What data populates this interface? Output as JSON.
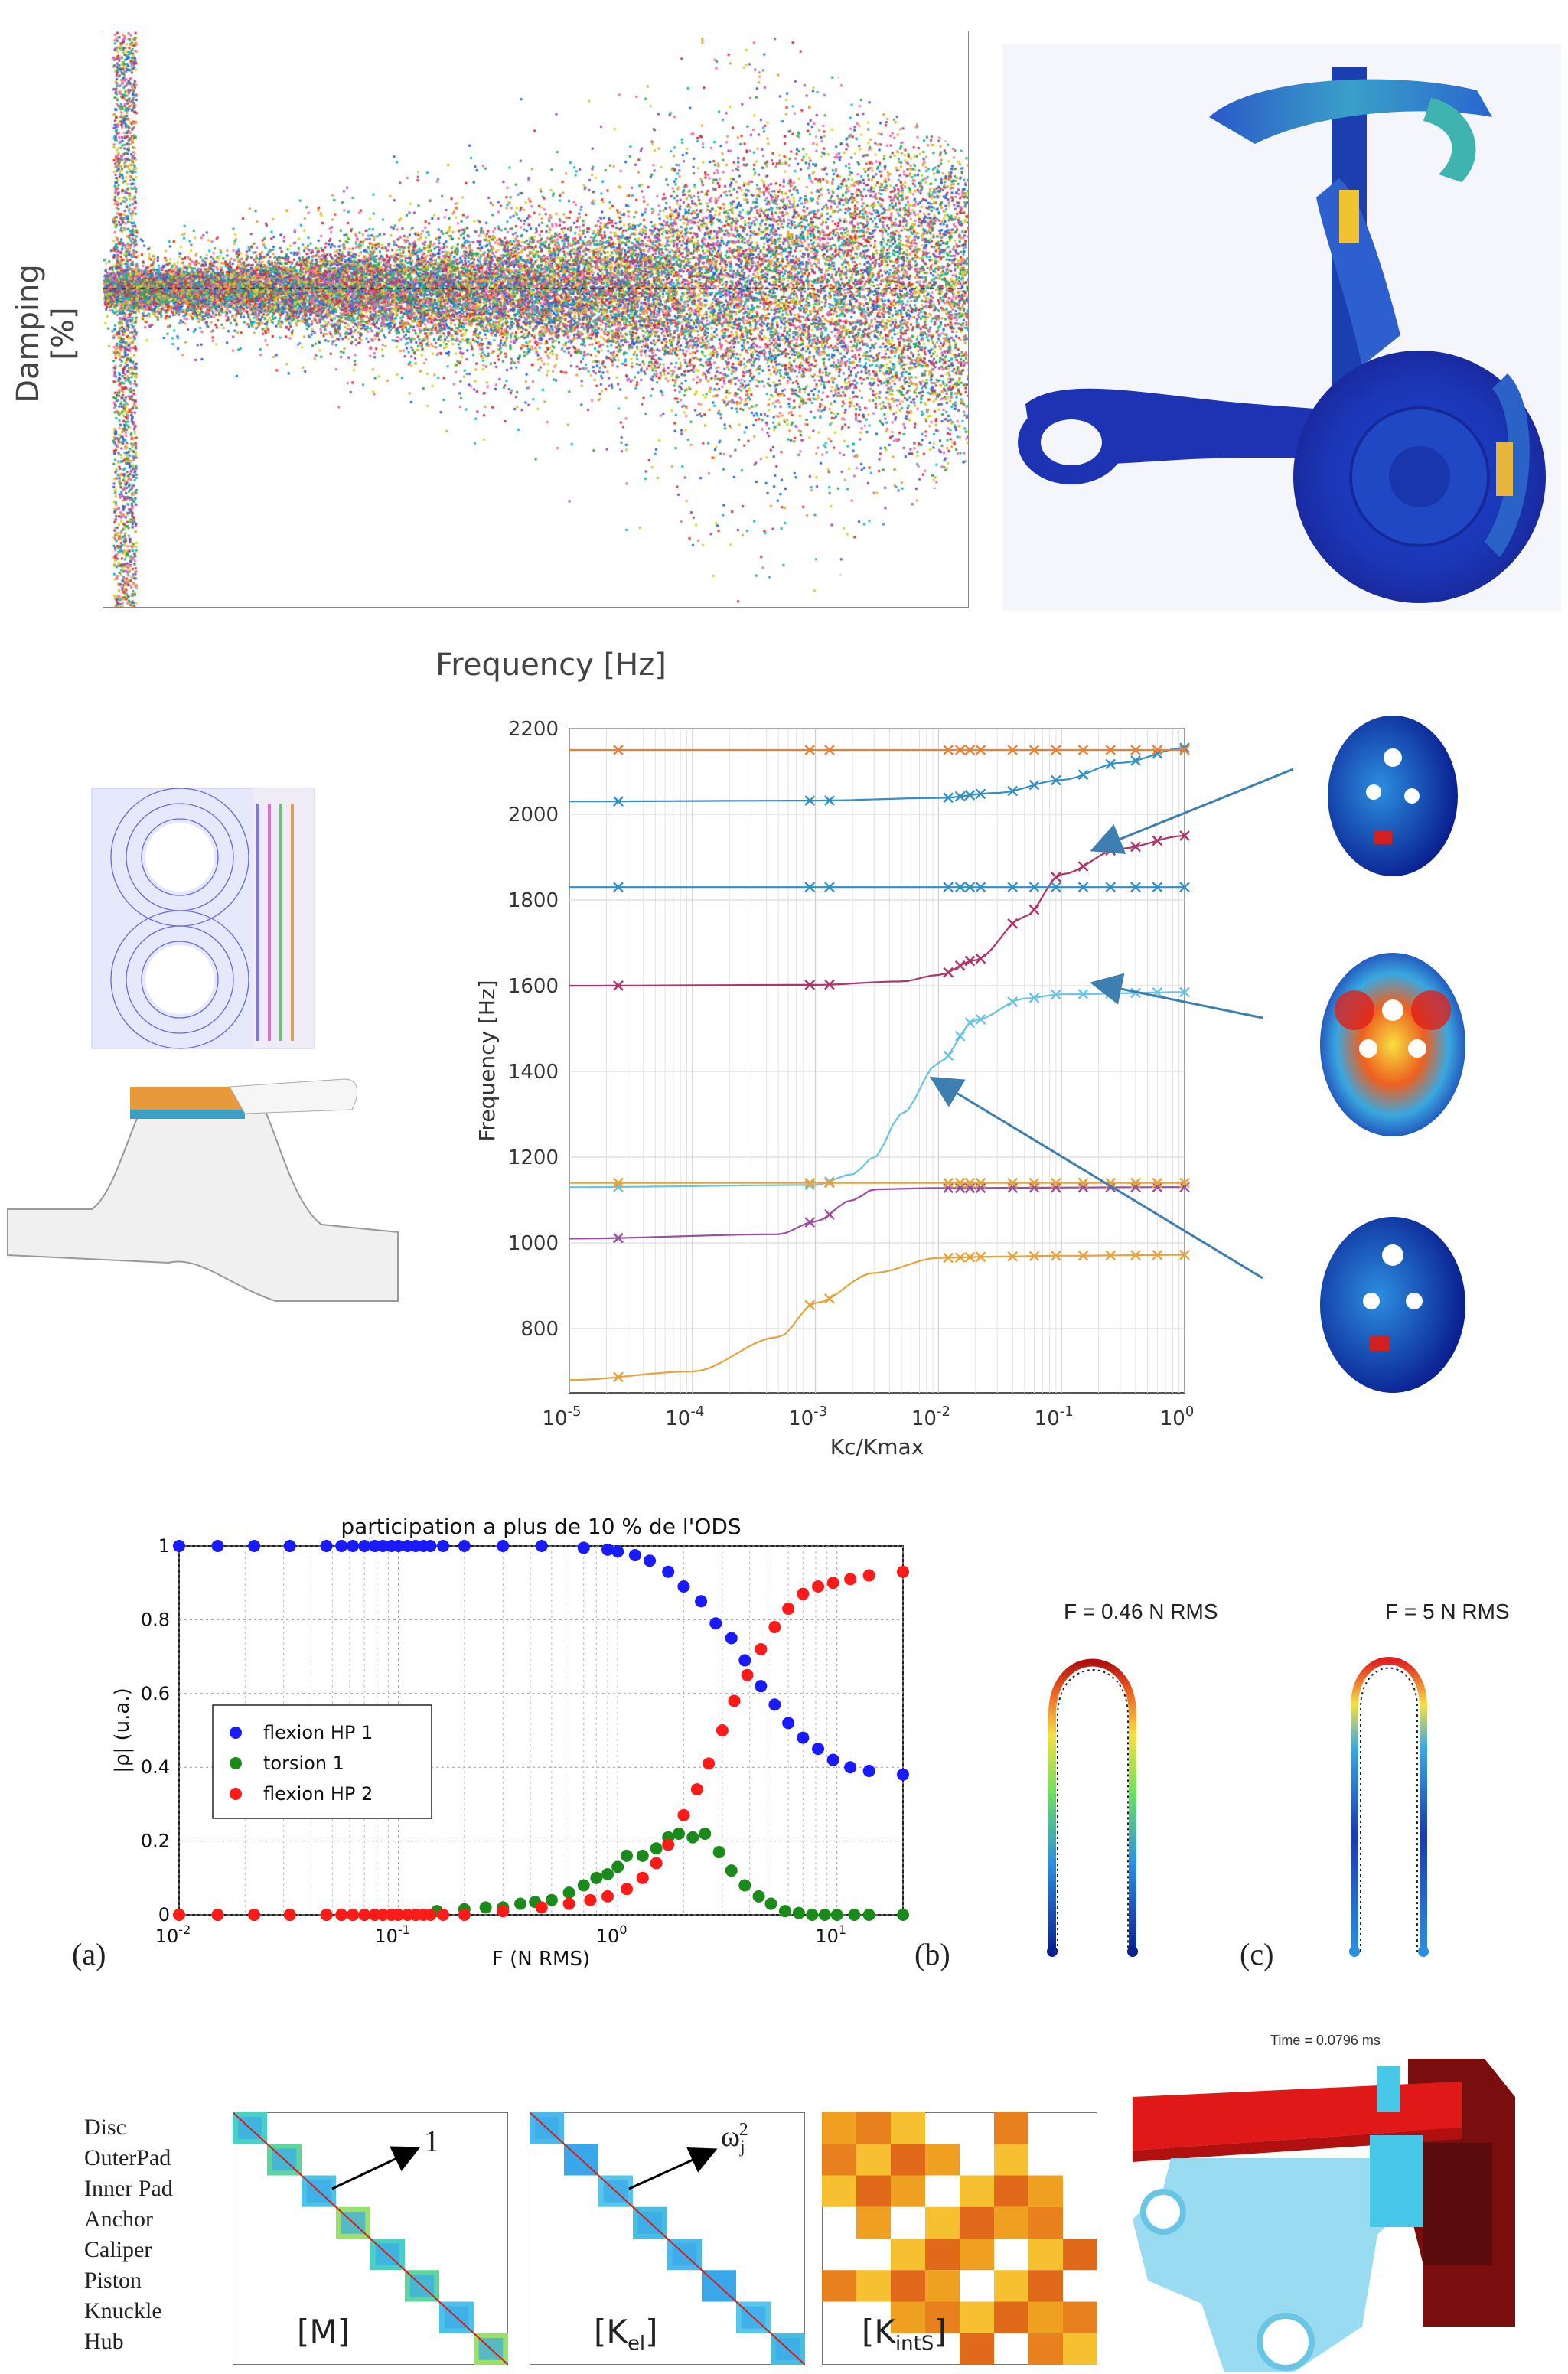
{
  "panel_top": {
    "xlabel": "Frequency [Hz]",
    "ylabel": "Damping [%]"
  },
  "panel_mid": {
    "chart_data": {
      "type": "line",
      "xlabel": "Kc/Kmax",
      "ylabel": "Frequency [Hz]",
      "xscale": "log",
      "xlim": [
        1e-05,
        1
      ],
      "ylim": [
        650,
        2200
      ],
      "yticks": [
        800,
        1000,
        1200,
        1400,
        1600,
        1800,
        2000,
        2200
      ],
      "xticks": [
        {
          "base": "10",
          "exp": "-5"
        },
        {
          "base": "10",
          "exp": "-4"
        },
        {
          "base": "10",
          "exp": "-3"
        },
        {
          "base": "10",
          "exp": "-2"
        },
        {
          "base": "10",
          "exp": "-1"
        },
        {
          "base": "10",
          "exp": "0"
        }
      ],
      "grid": true,
      "series": [
        {
          "color": "#e8a23a",
          "x": [
            1e-05,
            0.0001,
            0.0005,
            0.001,
            0.003,
            0.01,
            0.03,
            0.1,
            1
          ],
          "y": [
            680,
            700,
            780,
            860,
            930,
            965,
            968,
            970,
            972
          ]
        },
        {
          "color": "#9b4fa3",
          "x": [
            1e-05,
            0.0005,
            0.001,
            0.002,
            0.003,
            0.01,
            1
          ],
          "y": [
            1010,
            1020,
            1050,
            1100,
            1125,
            1128,
            1130
          ]
        },
        {
          "color": "#67c3e8",
          "x": [
            1e-05,
            0.001,
            0.002,
            0.003,
            0.005,
            0.01,
            0.02,
            0.05,
            0.1,
            1
          ],
          "y": [
            1130,
            1135,
            1160,
            1200,
            1300,
            1420,
            1520,
            1570,
            1580,
            1585
          ]
        },
        {
          "color": "#e8a23a",
          "x": [
            1e-05,
            1
          ],
          "y": [
            1140,
            1140
          ]
        },
        {
          "color": "#b0346a",
          "x": [
            1e-05,
            0.001,
            0.005,
            0.01,
            0.02,
            0.05,
            0.1,
            0.3,
            1
          ],
          "y": [
            1600,
            1602,
            1610,
            1625,
            1660,
            1760,
            1860,
            1920,
            1950
          ]
        },
        {
          "color": "#2f8fc9",
          "x": [
            1e-05,
            1
          ],
          "y": [
            1830,
            1830
          ]
        },
        {
          "color": "#2f8fc9",
          "x": [
            1e-05,
            0.001,
            0.01,
            0.03,
            0.1,
            0.3,
            1
          ],
          "y": [
            2030,
            2032,
            2038,
            2050,
            2080,
            2120,
            2155
          ]
        },
        {
          "color": "#e8803a",
          "x": [
            1e-05,
            1
          ],
          "y": [
            2150,
            2150
          ]
        }
      ]
    }
  },
  "panel_part": {
    "chart_data": {
      "type": "scatter",
      "title": "participation a plus de 10 % de l'ODS",
      "xlabel": "F (N RMS)",
      "ylabel": "|ρ| (u.a.)",
      "xscale": "log",
      "xlim": [
        0.01,
        20
      ],
      "ylim": [
        0,
        1
      ],
      "yticks": [
        "0",
        "0.2",
        "0.4",
        "0.6",
        "0.8",
        "1"
      ],
      "xticks": [
        {
          "base": "10",
          "exp": "-2"
        },
        {
          "base": "10",
          "exp": "-1"
        },
        {
          "base": "10",
          "exp": "0"
        },
        {
          "base": "10",
          "exp": "1"
        }
      ],
      "grid": true,
      "legend_position": "center-left",
      "series": [
        {
          "name": "flexion HP 1",
          "color": "#1a1aff",
          "x": [
            0.01,
            0.015,
            0.022,
            0.032,
            0.047,
            0.055,
            0.062,
            0.07,
            0.078,
            0.085,
            0.093,
            0.1,
            0.11,
            0.12,
            0.13,
            0.14,
            0.16,
            0.2,
            0.3,
            0.45,
            0.7,
            0.9,
            1.0,
            1.2,
            1.4,
            1.7,
            2.0,
            2.4,
            2.8,
            3.3,
            3.8,
            4.5,
            5.2,
            6.0,
            7.0,
            8.2,
            9.6,
            11.5,
            14.0,
            20.0
          ],
          "y": [
            1,
            1,
            1,
            1,
            1,
            1,
            1,
            1,
            1,
            1,
            1,
            1,
            1,
            1,
            1,
            1,
            1,
            1,
            1,
            1,
            0.995,
            0.99,
            0.985,
            0.975,
            0.96,
            0.93,
            0.89,
            0.85,
            0.79,
            0.75,
            0.69,
            0.62,
            0.57,
            0.52,
            0.48,
            0.45,
            0.42,
            0.4,
            0.39,
            0.38
          ]
        },
        {
          "name": "torsion 1",
          "color": "#1a8a1a",
          "x": [
            0.01,
            0.015,
            0.022,
            0.032,
            0.047,
            0.055,
            0.062,
            0.07,
            0.078,
            0.085,
            0.093,
            0.1,
            0.11,
            0.12,
            0.15,
            0.2,
            0.25,
            0.3,
            0.36,
            0.42,
            0.5,
            0.6,
            0.7,
            0.8,
            0.9,
            1.0,
            1.1,
            1.3,
            1.5,
            1.7,
            1.9,
            2.2,
            2.5,
            2.9,
            3.3,
            3.8,
            4.4,
            5.0,
            5.8,
            6.7,
            7.7,
            8.8,
            10,
            12,
            14,
            20
          ],
          "y": [
            0,
            0,
            0,
            0,
            0,
            0,
            0,
            0,
            0,
            0,
            0,
            0,
            0,
            0,
            0.01,
            0.015,
            0.02,
            0.02,
            0.03,
            0.035,
            0.04,
            0.06,
            0.08,
            0.1,
            0.11,
            0.13,
            0.16,
            0.16,
            0.18,
            0.21,
            0.22,
            0.21,
            0.22,
            0.17,
            0.12,
            0.08,
            0.05,
            0.03,
            0.01,
            0.005,
            0,
            0,
            0,
            0,
            0,
            0
          ]
        },
        {
          "name": "flexion HP 2",
          "color": "#ff1a1a",
          "x": [
            0.01,
            0.015,
            0.022,
            0.032,
            0.047,
            0.055,
            0.062,
            0.07,
            0.078,
            0.085,
            0.093,
            0.1,
            0.11,
            0.12,
            0.13,
            0.14,
            0.16,
            0.2,
            0.3,
            0.45,
            0.6,
            0.75,
            0.9,
            1.1,
            1.3,
            1.5,
            1.7,
            2.0,
            2.3,
            2.6,
            3.0,
            3.4,
            3.9,
            4.5,
            5.2,
            6.0,
            7.0,
            8.2,
            9.6,
            11.5,
            14.0,
            20.0
          ],
          "y": [
            0,
            0,
            0,
            0,
            0,
            0,
            0,
            0,
            0,
            0,
            0,
            0,
            0,
            0,
            0,
            0,
            0,
            0,
            0.01,
            0.02,
            0.03,
            0.04,
            0.05,
            0.07,
            0.1,
            0.14,
            0.19,
            0.27,
            0.34,
            0.41,
            0.5,
            0.58,
            0.65,
            0.72,
            0.78,
            0.83,
            0.87,
            0.89,
            0.9,
            0.91,
            0.92,
            0.93
          ]
        }
      ]
    },
    "label_a": "(a)",
    "label_b": "(b)",
    "label_c": "(c)",
    "shape_b_label": "F = 0.46 N RMS",
    "shape_c_label": "F = 5 N RMS"
  },
  "panel_bottom": {
    "parts": [
      "Disc",
      "OuterPad",
      "Inner Pad",
      "Anchor",
      "Caliper",
      "Piston",
      "Knuckle",
      "Hub"
    ],
    "m_label": "[M]",
    "m_annot": "1",
    "kel_label_base": "[K",
    "kel_label_sub": "el",
    "kel_label_end": "]",
    "kel_annot_base": "ω",
    "kel_annot_sub": "j",
    "kel_annot_sup": "2",
    "kints_label_base": "[K",
    "kints_label_sub": "intS",
    "kints_label_end": "]",
    "time_label": "Time = 0.0796 ms"
  }
}
